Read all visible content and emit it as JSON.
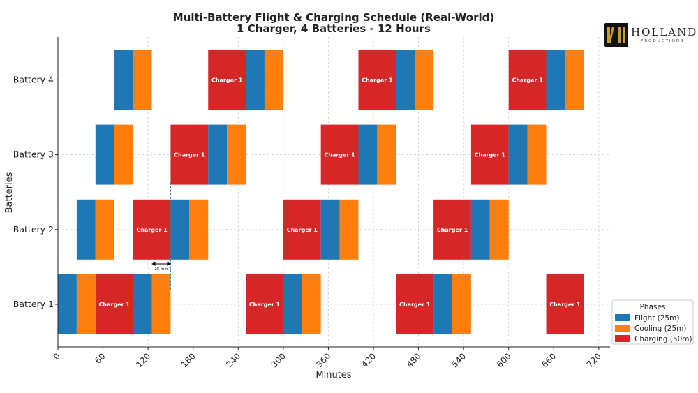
{
  "chart_data": {
    "type": "gantt",
    "title": "Multi-Battery Flight & Charging Schedule (Real-World)",
    "subtitle": "1 Charger, 4 Batteries - 12 Hours",
    "xlabel": "Minutes",
    "ylabel": "Batteries",
    "xlim": [
      0,
      735
    ],
    "xticks": [
      0,
      60,
      120,
      180,
      240,
      300,
      360,
      420,
      480,
      540,
      600,
      660,
      720
    ],
    "grid": true,
    "categories": [
      "Battery 1",
      "Battery 2",
      "Battery 3",
      "Battery 4"
    ],
    "colors": {
      "flight": "#1f77b4",
      "cooling": "#ff7f0e",
      "charging": "#d62728"
    },
    "legend": {
      "title": "Phases",
      "placement": "bottom-right",
      "entries": [
        {
          "key": "flight",
          "label": "Flight (25m)"
        },
        {
          "key": "cooling",
          "label": "Cooling (25m)"
        },
        {
          "key": "charging",
          "label": "Charging (50m)"
        }
      ]
    },
    "charging_label": "Charger 1",
    "segments": [
      {
        "battery": "Battery 1",
        "phase": "flight",
        "start": 0,
        "end": 25
      },
      {
        "battery": "Battery 1",
        "phase": "cooling",
        "start": 25,
        "end": 50
      },
      {
        "battery": "Battery 1",
        "phase": "charging",
        "start": 50,
        "end": 100
      },
      {
        "battery": "Battery 1",
        "phase": "flight",
        "start": 100,
        "end": 125
      },
      {
        "battery": "Battery 1",
        "phase": "cooling",
        "start": 125,
        "end": 150
      },
      {
        "battery": "Battery 1",
        "phase": "charging",
        "start": 250,
        "end": 300
      },
      {
        "battery": "Battery 1",
        "phase": "flight",
        "start": 300,
        "end": 325
      },
      {
        "battery": "Battery 1",
        "phase": "cooling",
        "start": 325,
        "end": 350
      },
      {
        "battery": "Battery 1",
        "phase": "charging",
        "start": 450,
        "end": 500
      },
      {
        "battery": "Battery 1",
        "phase": "flight",
        "start": 500,
        "end": 525
      },
      {
        "battery": "Battery 1",
        "phase": "cooling",
        "start": 525,
        "end": 550
      },
      {
        "battery": "Battery 1",
        "phase": "charging",
        "start": 650,
        "end": 700
      },
      {
        "battery": "Battery 2",
        "phase": "flight",
        "start": 25,
        "end": 50
      },
      {
        "battery": "Battery 2",
        "phase": "cooling",
        "start": 50,
        "end": 75
      },
      {
        "battery": "Battery 2",
        "phase": "charging",
        "start": 100,
        "end": 150
      },
      {
        "battery": "Battery 2",
        "phase": "flight",
        "start": 150,
        "end": 175
      },
      {
        "battery": "Battery 2",
        "phase": "cooling",
        "start": 175,
        "end": 200
      },
      {
        "battery": "Battery 2",
        "phase": "charging",
        "start": 300,
        "end": 350
      },
      {
        "battery": "Battery 2",
        "phase": "flight",
        "start": 350,
        "end": 375
      },
      {
        "battery": "Battery 2",
        "phase": "cooling",
        "start": 375,
        "end": 400
      },
      {
        "battery": "Battery 2",
        "phase": "charging",
        "start": 500,
        "end": 550
      },
      {
        "battery": "Battery 2",
        "phase": "flight",
        "start": 550,
        "end": 575
      },
      {
        "battery": "Battery 2",
        "phase": "cooling",
        "start": 575,
        "end": 600
      },
      {
        "battery": "Battery 3",
        "phase": "flight",
        "start": 50,
        "end": 75
      },
      {
        "battery": "Battery 3",
        "phase": "cooling",
        "start": 75,
        "end": 100
      },
      {
        "battery": "Battery 3",
        "phase": "charging",
        "start": 150,
        "end": 200
      },
      {
        "battery": "Battery 3",
        "phase": "flight",
        "start": 200,
        "end": 225
      },
      {
        "battery": "Battery 3",
        "phase": "cooling",
        "start": 225,
        "end": 250
      },
      {
        "battery": "Battery 3",
        "phase": "charging",
        "start": 350,
        "end": 400
      },
      {
        "battery": "Battery 3",
        "phase": "flight",
        "start": 400,
        "end": 425
      },
      {
        "battery": "Battery 3",
        "phase": "cooling",
        "start": 425,
        "end": 450
      },
      {
        "battery": "Battery 3",
        "phase": "charging",
        "start": 550,
        "end": 600
      },
      {
        "battery": "Battery 3",
        "phase": "flight",
        "start": 600,
        "end": 625
      },
      {
        "battery": "Battery 3",
        "phase": "cooling",
        "start": 625,
        "end": 650
      },
      {
        "battery": "Battery 4",
        "phase": "flight",
        "start": 75,
        "end": 100
      },
      {
        "battery": "Battery 4",
        "phase": "cooling",
        "start": 100,
        "end": 125
      },
      {
        "battery": "Battery 4",
        "phase": "charging",
        "start": 200,
        "end": 250
      },
      {
        "battery": "Battery 4",
        "phase": "flight",
        "start": 250,
        "end": 275
      },
      {
        "battery": "Battery 4",
        "phase": "cooling",
        "start": 275,
        "end": 300
      },
      {
        "battery": "Battery 4",
        "phase": "charging",
        "start": 400,
        "end": 450
      },
      {
        "battery": "Battery 4",
        "phase": "flight",
        "start": 450,
        "end": 475
      },
      {
        "battery": "Battery 4",
        "phase": "cooling",
        "start": 475,
        "end": 500
      },
      {
        "battery": "Battery 4",
        "phase": "charging",
        "start": 600,
        "end": 650
      },
      {
        "battery": "Battery 4",
        "phase": "flight",
        "start": 650,
        "end": 675
      },
      {
        "battery": "Battery 4",
        "phase": "cooling",
        "start": 675,
        "end": 700
      }
    ],
    "annotation": {
      "text": "25 min",
      "from": 125,
      "to": 150,
      "marker_x": 150
    }
  },
  "logo": {
    "word": "HOLLAND",
    "sub": "PRODUCTIONS"
  }
}
